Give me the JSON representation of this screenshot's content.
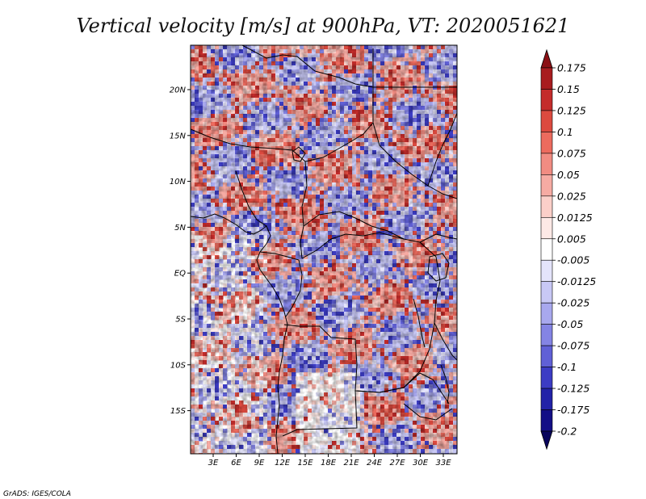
{
  "map": {
    "title": "Vertical velocity [m/s] at 900hPa, VT: 2020051621",
    "variable": "Vertical velocity",
    "units": "m/s",
    "level": "900hPa",
    "valid_time": "2020051621",
    "credit": "GrADS: IGES/COLA",
    "lon_labels": [
      "3E",
      "6E",
      "9E",
      "12E",
      "15E",
      "18E",
      "21E",
      "24E",
      "27E",
      "30E",
      "33E"
    ],
    "lat_labels": [
      "20N",
      "15N",
      "10N",
      "5N",
      "EQ",
      "5S",
      "10S",
      "15S"
    ],
    "colorbar": {
      "labels": [
        "0.175",
        "0.15",
        "0.125",
        "0.1",
        "0.075",
        "0.05",
        "0.025",
        "0.0125",
        "0.005",
        "-0.005",
        "-0.0125",
        "-0.025",
        "-0.05",
        "-0.075",
        "-0.1",
        "-0.125",
        "-0.175",
        "-0.2"
      ],
      "colors": [
        "#8b0f14",
        "#a81c1f",
        "#c42c2b",
        "#dc4a3f",
        "#ec6b5e",
        "#f18c82",
        "#f6aba3",
        "#fbcfc9",
        "#fde9e6",
        "#ffffff",
        "#e4e4fb",
        "#c8c8f5",
        "#a8a8ee",
        "#8484e4",
        "#6060d6",
        "#3c3cc4",
        "#2222a8",
        "#130f86",
        "#08045c"
      ]
    }
  }
}
